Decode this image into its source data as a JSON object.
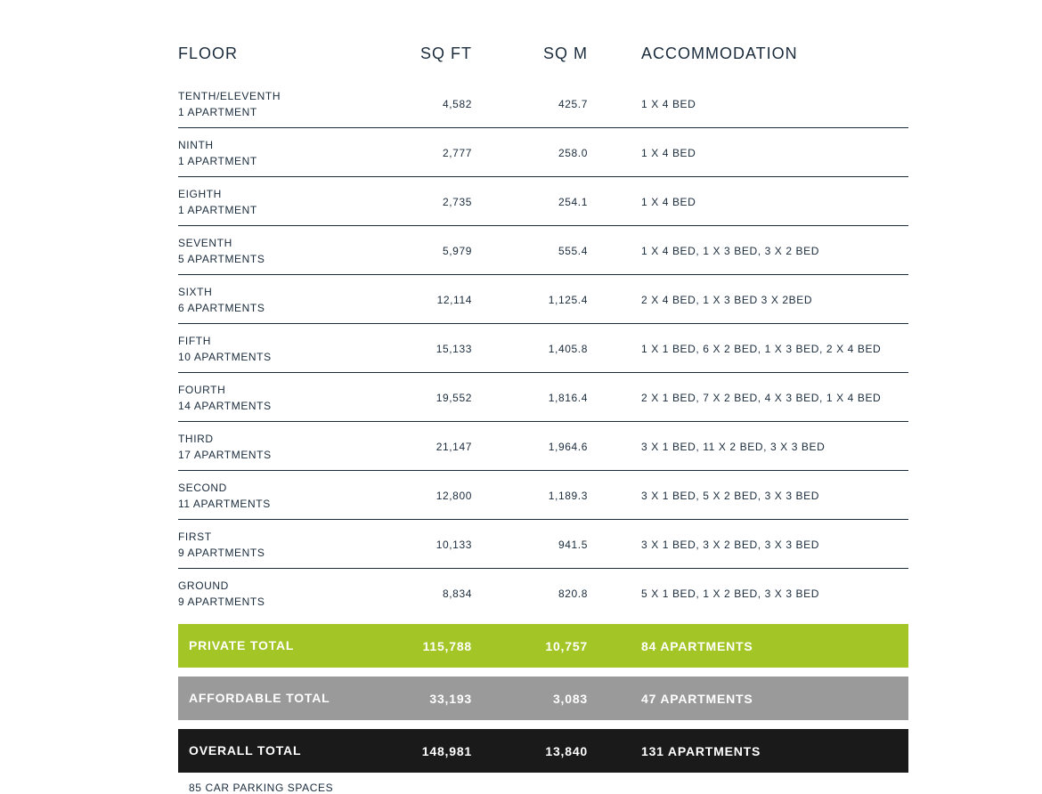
{
  "header": {
    "floor": "FLOOR",
    "sqft": "SQ FT",
    "sqm": "SQ M",
    "accom": "ACCOMMODATION"
  },
  "rows": [
    {
      "floor": "TENTH/ELEVENTH",
      "sub": "1 APARTMENT",
      "sqft": "4,582",
      "sqm": "425.7",
      "accom": "1 X 4 BED"
    },
    {
      "floor": "NINTH",
      "sub": "1 APARTMENT",
      "sqft": "2,777",
      "sqm": "258.0",
      "accom": "1 X 4 BED"
    },
    {
      "floor": "EIGHTH",
      "sub": "1 APARTMENT",
      "sqft": "2,735",
      "sqm": "254.1",
      "accom": "1 X 4 BED"
    },
    {
      "floor": "SEVENTH",
      "sub": "5 APARTMENTS",
      "sqft": "5,979",
      "sqm": "555.4",
      "accom": "1 X 4 BED, 1 X 3 BED, 3 X 2 BED"
    },
    {
      "floor": "SIXTH",
      "sub": "6 APARTMENTS",
      "sqft": "12,114",
      "sqm": "1,125.4",
      "accom": "2 X 4 BED, 1 X 3 BED 3 X 2BED"
    },
    {
      "floor": "FIFTH",
      "sub": "10 APARTMENTS",
      "sqft": "15,133",
      "sqm": "1,405.8",
      "accom": "1 X 1 BED, 6 X 2 BED, 1 X 3 BED, 2 X 4 BED"
    },
    {
      "floor": "FOURTH",
      "sub": "14 APARTMENTS",
      "sqft": "19,552",
      "sqm": "1,816.4",
      "accom": "2 X 1 BED, 7 X 2 BED, 4 X 3 BED, 1 X 4 BED"
    },
    {
      "floor": "THIRD",
      "sub": "17 APARTMENTS",
      "sqft": "21,147",
      "sqm": "1,964.6",
      "accom": "3 X 1 BED, 11 X 2 BED, 3 X 3 BED"
    },
    {
      "floor": "SECOND",
      "sub": "11 APARTMENTS",
      "sqft": "12,800",
      "sqm": "1,189.3",
      "accom": "3 X 1 BED, 5 X 2 BED, 3 X 3 BED"
    },
    {
      "floor": "FIRST",
      "sub": "9 APARTMENTS",
      "sqft": "10,133",
      "sqm": "941.5",
      "accom": "3 X 1 BED, 3 X 2 BED, 3 X 3 BED"
    },
    {
      "floor": "GROUND",
      "sub": "9 APARTMENTS",
      "sqft": "8,834",
      "sqm": "820.8",
      "accom": "5 X 1 BED, 1 X 2 BED, 3 X 3 BED"
    }
  ],
  "totals": [
    {
      "label": "PRIVATE TOTAL",
      "sqft": "115,788",
      "sqm": "10,757",
      "accom": "84 APARTMENTS",
      "bg": "#a3c626"
    },
    {
      "label": "AFFORDABLE TOTAL",
      "sqft": "33,193",
      "sqm": "3,083",
      "accom": "47 APARTMENTS",
      "bg": "#9a9a9a"
    },
    {
      "label": "OVERALL TOTAL",
      "sqft": "148,981",
      "sqm": "13,840",
      "accom": "131 APARTMENTS",
      "bg": "#1a1a1a"
    }
  ],
  "footnote": "85 CAR PARKING SPACES",
  "styling": {
    "page_bg": "#ffffff",
    "text_color": "#1a2b3c",
    "row_border_color": "#1a2b3c",
    "header_fontsize": 18,
    "row_fontsize": 12,
    "total_fontsize": 14,
    "total_text_color": "#ffffff"
  }
}
